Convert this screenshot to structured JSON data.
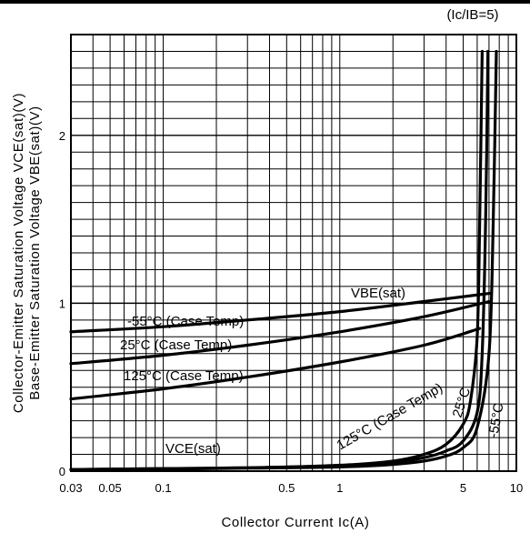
{
  "chart_data": {
    "type": "line",
    "title": "",
    "condition_label": "(Ic/IB=5)",
    "xlabel": "Collector Current Ic(A)",
    "ylabel_lines": [
      "Collector-Emitter Saturation Voltage VCE(sat)(V)",
      "Base-Emitter Saturation Voltage VBE(sat)(V)"
    ],
    "x_scale": "log",
    "xlim": [
      0.03,
      10
    ],
    "ylim": [
      0,
      2.6
    ],
    "x_tick_labels": [
      "0.03",
      "0.05",
      "0.1",
      "0.5",
      "1",
      "5",
      "10"
    ],
    "x_tick_values": [
      0.03,
      0.05,
      0.1,
      0.5,
      1,
      5,
      10
    ],
    "y_tick_labels": [
      "0",
      "1",
      "2"
    ],
    "y_tick_values": [
      0,
      1,
      2
    ],
    "grid": true,
    "annotations": {
      "vbe_group": "VBE(sat)",
      "vce_group": "VCE(sat)",
      "vbe_m55": "-55°C (Case Temp)",
      "vbe_25": "25°C (Case Temp)",
      "vbe_125": "125°C (Case Temp)",
      "vce_125": "125°C (Case Temp)",
      "vce_25": "25°C",
      "vce_m55": "-55°C"
    },
    "series": [
      {
        "group": "VBE(sat)",
        "temp": "-55°C",
        "x": [
          0.03,
          0.1,
          0.3,
          1,
          3,
          7.2
        ],
        "y": [
          0.83,
          0.86,
          0.9,
          0.95,
          1.01,
          1.06
        ]
      },
      {
        "group": "VBE(sat)",
        "temp": "25°C",
        "x": [
          0.03,
          0.1,
          0.3,
          1,
          3,
          7.0
        ],
        "y": [
          0.64,
          0.69,
          0.75,
          0.83,
          0.92,
          1.01
        ]
      },
      {
        "group": "VBE(sat)",
        "temp": "125°C",
        "x": [
          0.03,
          0.1,
          0.3,
          1,
          3,
          6.2
        ],
        "y": [
          0.43,
          0.49,
          0.56,
          0.65,
          0.75,
          0.85
        ]
      },
      {
        "group": "VCE(sat)",
        "temp": "125°C",
        "x": [
          0.03,
          0.1,
          0.3,
          1,
          2,
          3,
          4,
          5,
          5.5,
          6.0,
          6.2,
          6.4
        ],
        "y": [
          0.01,
          0.015,
          0.02,
          0.035,
          0.06,
          0.1,
          0.16,
          0.28,
          0.42,
          0.8,
          1.5,
          2.5
        ]
      },
      {
        "group": "VCE(sat)",
        "temp": "25°C",
        "x": [
          0.03,
          0.1,
          0.3,
          1,
          2,
          3,
          4,
          5,
          6,
          6.4,
          6.7,
          6.9
        ],
        "y": [
          0.01,
          0.015,
          0.02,
          0.03,
          0.05,
          0.08,
          0.12,
          0.18,
          0.35,
          0.7,
          1.5,
          2.5
        ]
      },
      {
        "group": "VCE(sat)",
        "temp": "-55°C",
        "x": [
          0.03,
          0.1,
          0.3,
          1,
          2,
          3,
          4,
          5,
          6,
          7.0,
          7.4,
          7.7
        ],
        "y": [
          0.01,
          0.012,
          0.018,
          0.025,
          0.04,
          0.06,
          0.09,
          0.14,
          0.26,
          0.7,
          1.5,
          2.5
        ]
      }
    ]
  }
}
